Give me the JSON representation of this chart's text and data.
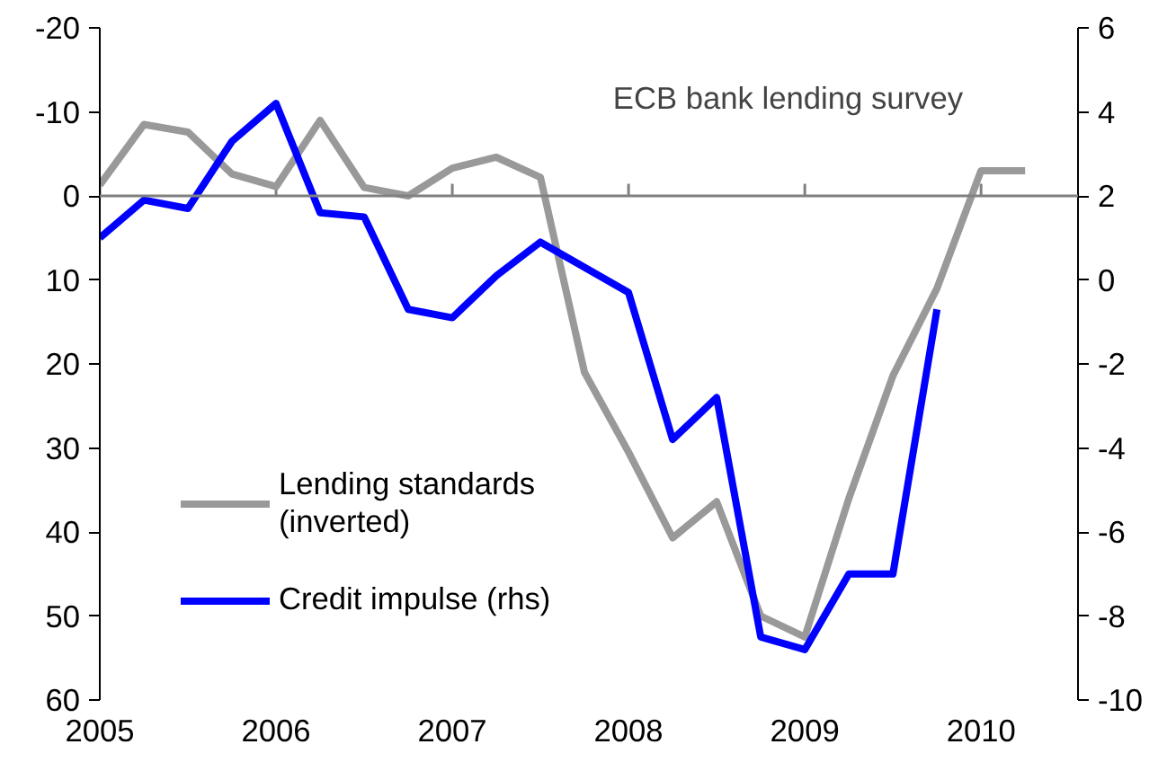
{
  "chart_data": {
    "type": "line",
    "annotations": [
      "ECB bank lending survey"
    ],
    "xlim": [
      2005,
      2010.55
    ],
    "xticks": [
      2005,
      2006,
      2007,
      2008,
      2009,
      2010
    ],
    "ylim": [
      60,
      -20
    ],
    "yticks": [
      -20,
      -10,
      0,
      10,
      20,
      30,
      40,
      50,
      60
    ],
    "y2lim": [
      -10,
      6
    ],
    "y2ticks": [
      -10,
      -8,
      -6,
      -4,
      -2,
      0,
      2,
      4,
      6
    ],
    "ref_lines": [
      {
        "axis": "y",
        "value": 0,
        "color": "#808080"
      }
    ],
    "grid": false,
    "legend": "left",
    "line_style": "solid",
    "marker": "none",
    "series": [
      {
        "name": "Lending standards (inverted)",
        "color": "#999999",
        "x": [
          2005,
          2005.25,
          2005.5,
          2005.75,
          2006,
          2006.25,
          2006.5,
          2006.75,
          2007,
          2007.25,
          2007.5,
          2007.75,
          2008,
          2008.25,
          2008.5,
          2008.75,
          2009,
          2009.25,
          2009.5,
          2009.75,
          2010,
          2010.25
        ],
        "values": [
          -1.3,
          -8.5,
          -7.6,
          -2.6,
          -1.1,
          -9,
          -1,
          0,
          -3.3,
          -4.6,
          -2.2,
          21,
          30.5,
          40.7,
          36.4,
          50,
          52.5,
          36,
          21.4,
          11,
          -3,
          -3
        ]
      },
      {
        "name": "Credit impulse (rhs)",
        "color": "#0000ff",
        "axis": "y2",
        "x": [
          2005,
          2005.25,
          2005.5,
          2005.75,
          2006,
          2006.25,
          2006.5,
          2006.75,
          2007,
          2007.25,
          2007.5,
          2007.75,
          2008,
          2008.25,
          2008.5,
          2008.75,
          2009,
          2009.25,
          2009.5,
          2009.75
        ],
        "values": [
          1.0,
          1.9,
          1.7,
          3.3,
          4.2,
          1.6,
          1.5,
          -0.7,
          -0.9,
          0.1,
          0.9,
          0.3,
          -0.3,
          -3.8,
          -2.8,
          -8.5,
          -8.8,
          -7.0,
          -7.0,
          -0.7
        ]
      }
    ]
  }
}
